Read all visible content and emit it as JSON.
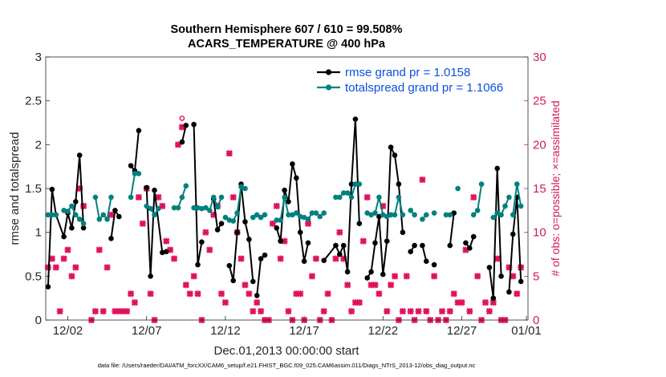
{
  "chart_data": {
    "type": "line",
    "title_line1": "Southern Hemisphere 607 / 610 = 99.508%",
    "title_line2": "ACARS_TEMPERATURE @ 400 hPa",
    "xlabel": "Dec.01,2013 00:00:00 start",
    "ylabel_left": "rmse and totalspread",
    "ylabel_right": "# of obs: o=possible; ×=assimilated",
    "footer": "data file: /Users/raeder/DAI/ATM_forcXX/CAM6_setup/f.e21.FHIST_BGC.f09_025.CAM6assim.011/Diags_NTrS_2013-12/obs_diag_output.nc",
    "xlim": [
      0.6,
      31.2
    ],
    "ylim_left": [
      0,
      3
    ],
    "ylim_right": [
      0,
      30
    ],
    "x_ticks": [
      {
        "value": 2,
        "label": "12/02"
      },
      {
        "value": 7,
        "label": "12/07"
      },
      {
        "value": 12,
        "label": "12/12"
      },
      {
        "value": 17,
        "label": "12/17"
      },
      {
        "value": 22,
        "label": "12/22"
      },
      {
        "value": 27,
        "label": "12/27"
      },
      {
        "value": 32,
        "label": "01/01"
      }
    ],
    "y_ticks_left": [
      "0",
      "0.5",
      "1",
      "1.5",
      "2",
      "2.5",
      "3"
    ],
    "y_ticks_right": [
      "0",
      "5",
      "10",
      "15",
      "20",
      "25",
      "30"
    ],
    "series": [
      {
        "name": "rmse",
        "legend": "rmse grand pr = 1.0158",
        "color": "#000000",
        "segments": [
          [
            [
              0.75,
              0.38
            ],
            [
              1.0,
              1.49
            ],
            [
              1.25,
              1.2
            ],
            [
              1.75,
              0.95
            ],
            [
              2.0,
              1.22
            ],
            [
              2.25,
              1.05
            ],
            [
              2.5,
              1.35
            ],
            [
              2.75,
              1.88
            ],
            [
              3.0,
              1.05
            ]
          ],
          [
            [
              4.75,
              0.93
            ],
            [
              5.0,
              1.25
            ],
            [
              5.25,
              1.18
            ]
          ],
          [
            [
              6.0,
              1.76
            ],
            [
              6.25,
              1.7
            ],
            [
              6.5,
              2.16
            ]
          ],
          [
            [
              7.0,
              1.51
            ],
            [
              7.25,
              0.5
            ],
            [
              7.5,
              1.48
            ],
            [
              8.0,
              0.77
            ],
            [
              8.25,
              0.78
            ]
          ],
          [
            [
              9.25,
              2.03
            ],
            [
              9.5,
              2.22
            ]
          ],
          [
            [
              10.0,
              2.23
            ],
            [
              10.25,
              0.63
            ],
            [
              10.5,
              0.89
            ]
          ],
          [
            [
              11.25,
              1.38
            ],
            [
              11.5,
              1.03
            ],
            [
              11.75,
              1.1
            ]
          ],
          [
            [
              12.25,
              0.62
            ],
            [
              12.5,
              0.45
            ],
            [
              12.75,
              1.0
            ],
            [
              13.0,
              1.55
            ],
            [
              13.25,
              1.12
            ],
            [
              13.5,
              0.92
            ],
            [
              13.75,
              0.44
            ]
          ],
          [
            [
              14.0,
              0.28
            ],
            [
              14.25,
              0.7
            ],
            [
              14.5,
              0.74
            ]
          ],
          [
            [
              15.25,
              1.05
            ],
            [
              15.5,
              0.9
            ],
            [
              15.75,
              1.48
            ],
            [
              16.0,
              1.35
            ],
            [
              16.25,
              1.78
            ],
            [
              16.5,
              1.62
            ],
            [
              16.75,
              1.0
            ],
            [
              17.0,
              0.67
            ],
            [
              17.25,
              0.88
            ]
          ],
          [
            [
              18.25,
              0.68
            ],
            [
              19.0,
              0.85
            ],
            [
              19.25,
              0.75
            ],
            [
              19.5,
              0.85
            ],
            [
              19.75,
              0.55
            ],
            [
              20.0,
              1.55
            ],
            [
              20.25,
              2.29
            ],
            [
              20.5,
              1.1
            ]
          ],
          [
            [
              21.0,
              0.48
            ],
            [
              21.25,
              0.55
            ],
            [
              21.5,
              0.88
            ],
            [
              21.75,
              1.18
            ],
            [
              22.0,
              0.52
            ],
            [
              22.25,
              0.9
            ],
            [
              22.5,
              1.97
            ],
            [
              22.75,
              1.88
            ],
            [
              23.0,
              1.55
            ],
            [
              23.25,
              1.0
            ]
          ],
          [
            [
              23.75,
              0.78
            ],
            [
              24.0,
              0.85
            ]
          ],
          [
            [
              24.5,
              0.85
            ],
            [
              24.75,
              0.67
            ]
          ],
          [
            [
              25.25,
              0.63
            ]
          ],
          [
            [
              26.25,
              0.85
            ],
            [
              26.5,
              1.22
            ]
          ],
          [
            [
              27.25,
              0.88
            ],
            [
              27.5,
              0.82
            ],
            [
              27.75,
              0.95
            ]
          ],
          [
            [
              28.75,
              0.6
            ],
            [
              29.0,
              0.25
            ],
            [
              29.25,
              1.73
            ],
            [
              29.5,
              0.5
            ]
          ],
          [
            [
              30.0,
              0.32
            ],
            [
              30.25,
              0.98
            ],
            [
              30.5,
              1.4
            ],
            [
              30.75,
              0.44
            ]
          ]
        ]
      },
      {
        "name": "totalspread",
        "legend": "totalspread grand pr = 1.1066",
        "color": "#008080",
        "segments": [
          [
            [
              0.75,
              1.2
            ],
            [
              1.0,
              1.2
            ],
            [
              1.25,
              1.2
            ]
          ],
          [
            [
              1.75,
              1.25
            ],
            [
              2.0,
              1.24
            ],
            [
              2.25,
              1.3
            ],
            [
              2.5,
              1.2
            ],
            [
              2.75,
              1.15
            ],
            [
              3.0,
              1.1
            ]
          ],
          [
            [
              3.75,
              1.4
            ],
            [
              4.0,
              1.15
            ],
            [
              4.25,
              1.2
            ],
            [
              4.5,
              1.15
            ],
            [
              4.75,
              1.4
            ]
          ],
          [
            [
              6.0,
              1.4
            ],
            [
              6.25,
              1.67
            ],
            [
              6.5,
              1.67
            ]
          ],
          [
            [
              7.0,
              1.3
            ],
            [
              7.25,
              1.27
            ],
            [
              7.5,
              1.2
            ],
            [
              7.75,
              1.27
            ]
          ],
          [
            [
              8.75,
              1.28
            ],
            [
              9.0,
              1.28
            ],
            [
              9.25,
              1.4
            ],
            [
              9.5,
              1.53
            ]
          ],
          [
            [
              10.0,
              1.28
            ],
            [
              10.25,
              1.28
            ],
            [
              10.5,
              1.27
            ],
            [
              10.75,
              1.28
            ],
            [
              11.0,
              1.25
            ],
            [
              11.25,
              1.4
            ],
            [
              11.5,
              1.29
            ],
            [
              11.75,
              1.4
            ]
          ],
          [
            [
              12.0,
              1.17
            ],
            [
              12.25,
              1.14
            ],
            [
              12.5,
              1.13
            ],
            [
              12.75,
              1.22
            ],
            [
              13.0,
              1.52
            ],
            [
              13.25,
              1.5
            ]
          ],
          [
            [
              13.75,
              1.17
            ],
            [
              14.0,
              1.2
            ],
            [
              14.25,
              1.17
            ],
            [
              14.5,
              1.2
            ]
          ],
          [
            [
              15.25,
              1.14
            ],
            [
              15.5,
              1.14
            ],
            [
              15.75,
              1.4
            ],
            [
              16.0,
              1.2
            ],
            [
              16.25,
              1.2
            ],
            [
              16.5,
              1.22
            ],
            [
              16.75,
              1.18
            ],
            [
              17.0,
              1.17
            ]
          ],
          [
            [
              17.25,
              1.15
            ],
            [
              17.5,
              1.22
            ],
            [
              17.75,
              1.22
            ],
            [
              18.0,
              1.18
            ],
            [
              18.25,
              1.22
            ]
          ],
          [
            [
              19.0,
              1.4
            ],
            [
              19.25,
              1.4
            ],
            [
              19.5,
              1.45
            ],
            [
              19.75,
              1.45
            ],
            [
              20.0,
              1.4
            ],
            [
              20.25,
              1.55
            ],
            [
              20.5,
              1.55
            ]
          ],
          [
            [
              21.0,
              1.22
            ],
            [
              21.25,
              1.2
            ],
            [
              21.5,
              1.22
            ],
            [
              21.75,
              1.4
            ],
            [
              22.0,
              1.2
            ],
            [
              22.25,
              1.18
            ],
            [
              22.5,
              1.2
            ],
            [
              22.75,
              1.2
            ],
            [
              23.0,
              1.4
            ],
            [
              23.25,
              1.2
            ]
          ],
          [
            [
              23.75,
              1.25
            ],
            [
              24.0,
              1.2
            ]
          ],
          [
            [
              24.5,
              1.15
            ],
            [
              24.75,
              1.2
            ]
          ],
          [
            [
              25.25,
              1.22
            ]
          ],
          [
            [
              26.0,
              1.2
            ],
            [
              26.25,
              1.2
            ]
          ],
          [
            [
              26.75,
              1.5
            ]
          ],
          [
            [
              27.75,
              1.2
            ],
            [
              28.0,
              1.25
            ],
            [
              28.25,
              1.55
            ]
          ],
          [
            [
              29.0,
              1.17
            ],
            [
              29.25,
              1.22
            ],
            [
              29.5,
              1.2
            ],
            [
              29.75,
              1.3
            ],
            [
              30.0,
              1.4
            ]
          ],
          [
            [
              30.25,
              1.2
            ],
            [
              30.5,
              1.55
            ],
            [
              30.75,
              1.3
            ]
          ]
        ]
      }
    ],
    "obs_possible": [
      [
        9.25,
        23
      ]
    ],
    "obs_assimilated": [
      [
        0.75,
        6
      ],
      [
        1.0,
        7
      ],
      [
        1.25,
        6
      ],
      [
        1.5,
        1
      ],
      [
        1.75,
        7
      ],
      [
        2.0,
        8
      ],
      [
        2.25,
        5
      ],
      [
        2.5,
        6
      ],
      [
        2.75,
        15
      ],
      [
        3.0,
        13
      ],
      [
        3.5,
        0
      ],
      [
        3.75,
        1
      ],
      [
        4.0,
        8
      ],
      [
        4.25,
        1
      ],
      [
        4.5,
        6
      ],
      [
        4.75,
        12
      ],
      [
        5.0,
        1
      ],
      [
        5.25,
        1
      ],
      [
        5.5,
        1
      ],
      [
        5.75,
        1
      ],
      [
        6.0,
        3
      ],
      [
        6.25,
        2
      ],
      [
        6.5,
        14
      ],
      [
        6.75,
        11
      ],
      [
        7.0,
        15
      ],
      [
        7.25,
        3
      ],
      [
        7.5,
        0
      ],
      [
        7.75,
        14
      ],
      [
        8.0,
        13
      ],
      [
        8.25,
        9
      ],
      [
        8.5,
        8
      ],
      [
        8.75,
        7
      ],
      [
        9.0,
        20
      ],
      [
        9.25,
        22
      ],
      [
        9.5,
        4
      ],
      [
        9.75,
        3
      ],
      [
        10.0,
        5
      ],
      [
        10.25,
        3
      ],
      [
        10.5,
        0
      ],
      [
        10.75,
        10
      ],
      [
        11.0,
        8
      ],
      [
        11.25,
        12
      ],
      [
        11.5,
        13
      ],
      [
        11.75,
        3
      ],
      [
        12.0,
        2
      ],
      [
        12.25,
        19
      ],
      [
        12.5,
        14
      ],
      [
        12.75,
        10
      ],
      [
        13.0,
        7
      ],
      [
        13.25,
        4
      ],
      [
        13.5,
        3
      ],
      [
        13.75,
        1
      ],
      [
        14.0,
        2
      ],
      [
        14.25,
        1
      ],
      [
        14.5,
        0
      ],
      [
        14.75,
        0
      ],
      [
        15.0,
        11
      ],
      [
        15.25,
        13
      ],
      [
        15.5,
        7
      ],
      [
        15.75,
        9
      ],
      [
        16.0,
        1
      ],
      [
        16.25,
        0
      ],
      [
        16.5,
        3
      ],
      [
        16.75,
        3
      ],
      [
        17.0,
        0
      ],
      [
        17.25,
        11
      ],
      [
        17.5,
        5
      ],
      [
        17.75,
        7
      ],
      [
        18.0,
        0
      ],
      [
        18.25,
        1
      ],
      [
        18.5,
        3
      ],
      [
        18.75,
        0
      ],
      [
        19.0,
        7
      ],
      [
        19.25,
        10
      ],
      [
        19.5,
        7
      ],
      [
        19.75,
        4
      ],
      [
        20.0,
        1
      ],
      [
        20.25,
        2
      ],
      [
        20.5,
        2
      ],
      [
        20.75,
        9
      ],
      [
        21.0,
        14
      ],
      [
        21.25,
        4
      ],
      [
        21.5,
        4
      ],
      [
        21.75,
        3
      ],
      [
        22.0,
        13
      ],
      [
        22.25,
        1
      ],
      [
        22.5,
        4
      ],
      [
        22.75,
        5
      ],
      [
        23.0,
        0
      ],
      [
        23.25,
        1
      ],
      [
        23.5,
        5
      ],
      [
        23.75,
        1
      ],
      [
        24.0,
        0
      ],
      [
        24.25,
        1
      ],
      [
        24.5,
        16
      ],
      [
        24.75,
        1
      ],
      [
        25.0,
        0
      ],
      [
        25.25,
        5
      ],
      [
        25.5,
        0
      ],
      [
        25.75,
        1
      ],
      [
        26.0,
        0
      ],
      [
        26.25,
        1
      ],
      [
        26.5,
        3
      ],
      [
        26.75,
        2
      ],
      [
        27.0,
        2
      ],
      [
        27.25,
        8
      ],
      [
        27.5,
        1
      ],
      [
        27.75,
        14
      ],
      [
        28.0,
        5
      ],
      [
        28.25,
        0
      ],
      [
        28.5,
        2
      ],
      [
        28.75,
        1
      ],
      [
        29.0,
        2
      ],
      [
        29.25,
        7
      ],
      [
        29.5,
        0
      ],
      [
        29.75,
        0
      ],
      [
        30.0,
        6
      ],
      [
        30.25,
        5
      ],
      [
        30.5,
        3
      ],
      [
        30.75,
        6
      ]
    ]
  }
}
